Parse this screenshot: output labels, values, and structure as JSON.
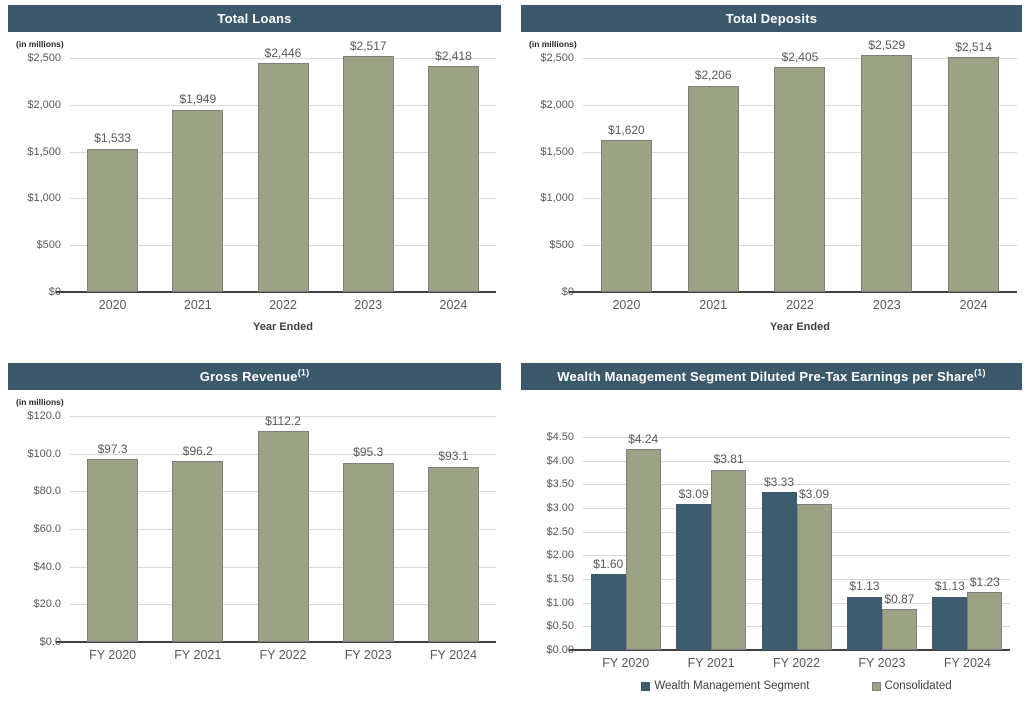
{
  "colors": {
    "header_bg": "#3c596b",
    "header_text": "#ffffff",
    "bar_green": "#9ca284",
    "bar_green_border": "#7f7f7f",
    "bar_blue": "#3d5c6e",
    "gridline": "#d9d9d9",
    "axis_line": "#404040",
    "tick_text": "#595959",
    "data_label_text": "#595959"
  },
  "chart_data": [
    {
      "id": "total-loans",
      "type": "bar",
      "title": "Total Loans",
      "title_sup": "",
      "units_note": "(in millions)",
      "xlabel": "Year Ended",
      "categories": [
        "2020",
        "2021",
        "2022",
        "2023",
        "2024"
      ],
      "series": [
        {
          "name": "Total Loans",
          "color": "#9ca284",
          "border": "#7f7f7f",
          "values": [
            1533,
            1949,
            2446,
            2517,
            2418
          ],
          "labels": [
            "$1,533",
            "$1,949",
            "$2,446",
            "$2,517",
            "$2,418"
          ]
        }
      ],
      "ylim": [
        0,
        2500
      ],
      "yticks": [
        {
          "v": 0,
          "label": "$0"
        },
        {
          "v": 500,
          "label": "$500"
        },
        {
          "v": 1000,
          "label": "$1,000"
        },
        {
          "v": 1500,
          "label": "$1,500"
        },
        {
          "v": 2000,
          "label": "$2,000"
        },
        {
          "v": 2500,
          "label": "$2,500"
        }
      ],
      "grid": true,
      "legend": null
    },
    {
      "id": "total-deposits",
      "type": "bar",
      "title": "Total Deposits",
      "title_sup": "",
      "units_note": "(in millions)",
      "xlabel": "Year Ended",
      "categories": [
        "2020",
        "2021",
        "2022",
        "2023",
        "2024"
      ],
      "series": [
        {
          "name": "Total Deposits",
          "color": "#9ca284",
          "border": "#7f7f7f",
          "values": [
            1620,
            2206,
            2405,
            2529,
            2514
          ],
          "labels": [
            "$1,620",
            "$2,206",
            "$2,405",
            "$2,529",
            "$2,514"
          ]
        }
      ],
      "ylim": [
        0,
        2500
      ],
      "yticks": [
        {
          "v": 0,
          "label": "$0"
        },
        {
          "v": 500,
          "label": "$500"
        },
        {
          "v": 1000,
          "label": "$1,000"
        },
        {
          "v": 1500,
          "label": "$1,500"
        },
        {
          "v": 2000,
          "label": "$2,000"
        },
        {
          "v": 2500,
          "label": "$2,500"
        }
      ],
      "grid": true,
      "legend": null
    },
    {
      "id": "gross-revenue",
      "type": "bar",
      "title": "Gross Revenue",
      "title_sup": "(1)",
      "units_note": "(in millions)",
      "xlabel": "",
      "categories": [
        "FY 2020",
        "FY 2021",
        "FY 2022",
        "FY 2023",
        "FY 2024"
      ],
      "series": [
        {
          "name": "Gross Revenue",
          "color": "#9ca284",
          "border": "#7f7f7f",
          "values": [
            97.3,
            96.2,
            112.2,
            95.3,
            93.1
          ],
          "labels": [
            "$97.3",
            "$96.2",
            "$112.2",
            "$95.3",
            "$93.1"
          ]
        }
      ],
      "ylim": [
        0,
        120
      ],
      "yticks": [
        {
          "v": 0,
          "label": "$0.0"
        },
        {
          "v": 20,
          "label": "$20.0"
        },
        {
          "v": 40,
          "label": "$40.0"
        },
        {
          "v": 60,
          "label": "$60.0"
        },
        {
          "v": 80,
          "label": "$80.0"
        },
        {
          "v": 100,
          "label": "$100.0"
        },
        {
          "v": 120,
          "label": "$120.0"
        }
      ],
      "grid": true,
      "legend": null
    },
    {
      "id": "wm-diluted-pretax-eps",
      "type": "bar",
      "title": "Wealth Management Segment Diluted Pre-Tax Earnings per Share",
      "title_sup": "(1)",
      "units_note": "",
      "xlabel": "",
      "categories": [
        "FY 2020",
        "FY 2021",
        "FY 2022",
        "FY 2023",
        "FY 2024"
      ],
      "series": [
        {
          "name": "Wealth Management Segment",
          "color": "#3d5c6e",
          "border": "#3d5c6e",
          "values": [
            1.6,
            3.09,
            3.33,
            1.13,
            1.13
          ],
          "labels": [
            "$1.60",
            "$3.09",
            "$3.33",
            "$1.13",
            "$1.13"
          ]
        },
        {
          "name": "Consolidated",
          "color": "#9ca284",
          "border": "#7f7f7f",
          "values": [
            4.24,
            3.81,
            3.09,
            0.87,
            1.23
          ],
          "labels": [
            "$4.24",
            "$3.81",
            "$3.09",
            "$0.87",
            "$1.23"
          ]
        }
      ],
      "ylim": [
        0,
        4.5
      ],
      "yticks": [
        {
          "v": 0,
          "label": "$0.00"
        },
        {
          "v": 0.5,
          "label": "$0.50"
        },
        {
          "v": 1.0,
          "label": "$1.00"
        },
        {
          "v": 1.5,
          "label": "$1.50"
        },
        {
          "v": 2.0,
          "label": "$2.00"
        },
        {
          "v": 2.5,
          "label": "$2.50"
        },
        {
          "v": 3.0,
          "label": "$3.00"
        },
        {
          "v": 3.5,
          "label": "$3.50"
        },
        {
          "v": 4.0,
          "label": "$4.00"
        },
        {
          "v": 4.5,
          "label": "$4.50"
        }
      ],
      "grid": true,
      "legend": {
        "position": "bottom",
        "entries": [
          {
            "label": "Wealth Management Segment",
            "color": "#3d5c6e",
            "border": "#3d5c6e"
          },
          {
            "label": "Consolidated",
            "color": "#9ca284",
            "border": "#7f7f7f"
          }
        ]
      }
    }
  ]
}
